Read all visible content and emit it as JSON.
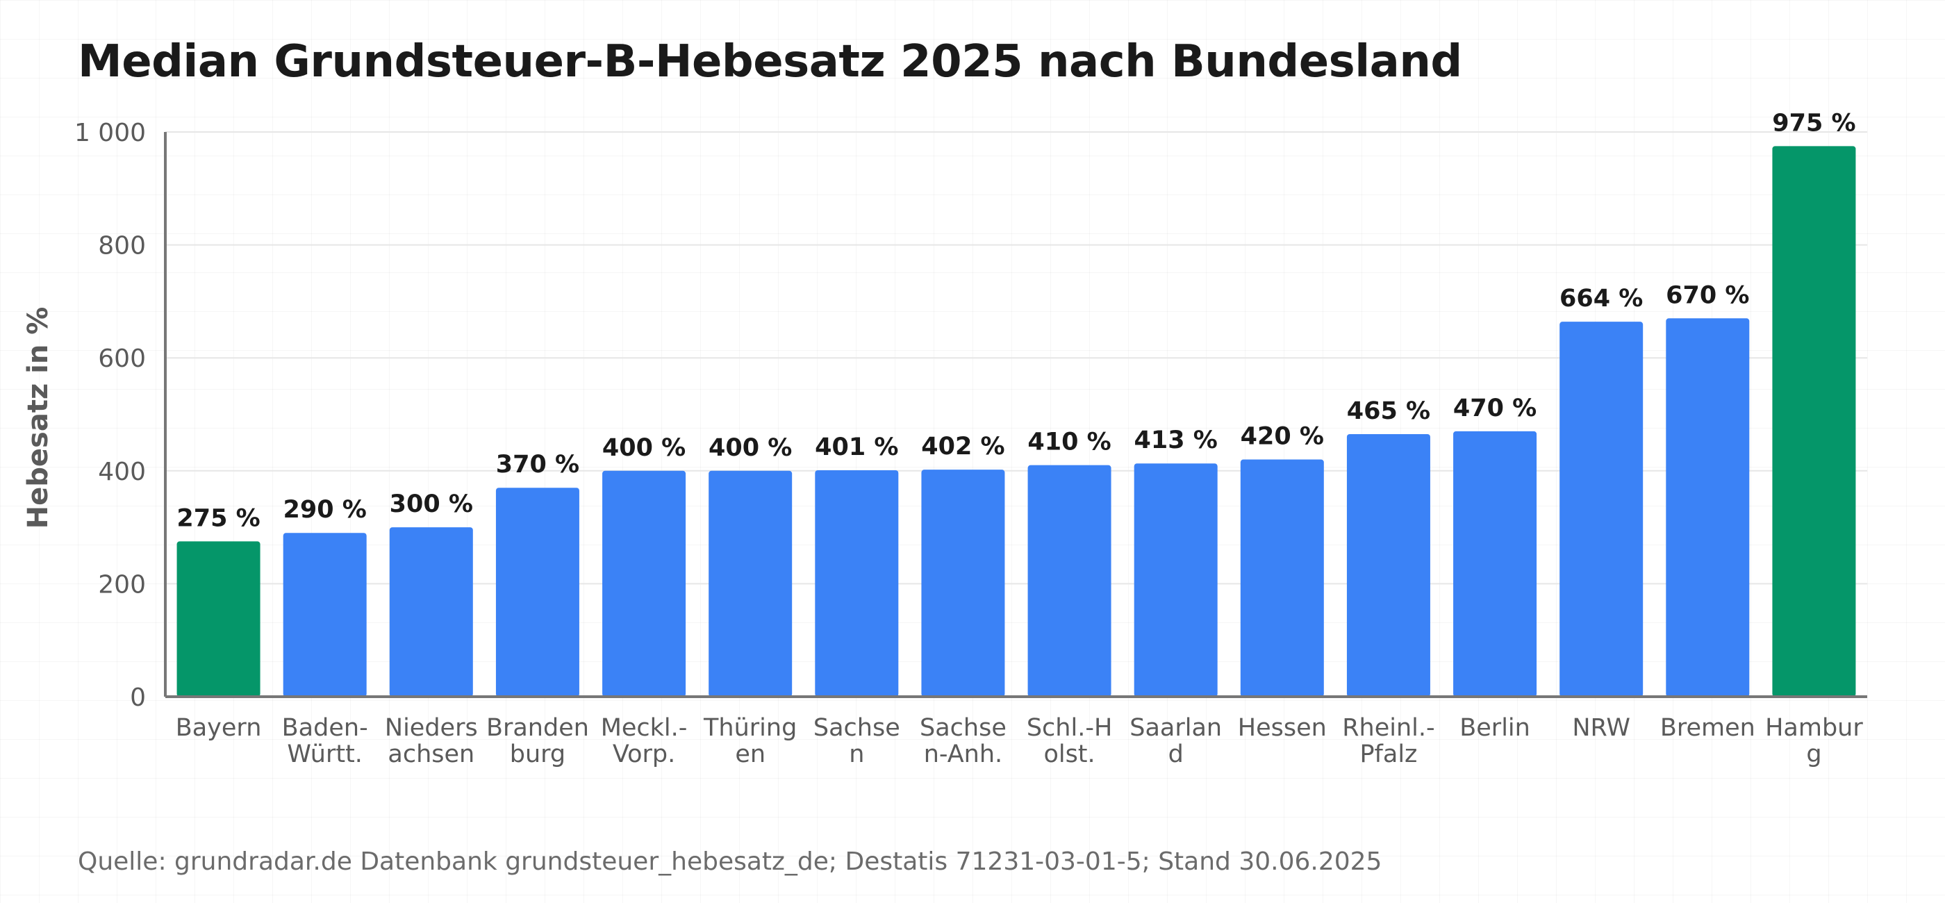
{
  "colors": {
    "highlight": "#059669",
    "default": "#3b82f6",
    "gridline": "#e6e6e6",
    "axis": "#777777"
  },
  "source_text": "Quelle: grundradar.de Datenbank grundsteuer_hebesatz_de; Destatis 71231-03-01-5; Stand 30.06.2025",
  "chart_data": {
    "type": "bar",
    "title": "Median Grundsteuer-B-Hebesatz 2025 nach Bundesland",
    "xlabel": "",
    "ylabel": "Hebesatz in %",
    "ylim": [
      0,
      1000
    ],
    "yticks": [
      0,
      200,
      400,
      600,
      800,
      1000
    ],
    "ytick_labels": [
      "0",
      "200",
      "400",
      "600",
      "800",
      "1 000"
    ],
    "grid": true,
    "categories": [
      [
        "Bayern"
      ],
      [
        "Baden-",
        "Württ."
      ],
      [
        "Nieders",
        "achsen"
      ],
      [
        "Branden",
        "burg"
      ],
      [
        "Meckl.-",
        "Vorp."
      ],
      [
        "Thüring",
        "en"
      ],
      [
        "Sachse",
        "n"
      ],
      [
        "Sachse",
        "n-Anh."
      ],
      [
        "Schl.-H",
        "olst."
      ],
      [
        "Saarlan",
        "d"
      ],
      [
        "Hessen"
      ],
      [
        "Rheinl.-",
        "Pfalz"
      ],
      [
        "Berlin"
      ],
      [
        "NRW"
      ],
      [
        "Bremen"
      ],
      [
        "Hambur",
        "g"
      ]
    ],
    "values": [
      275,
      290,
      300,
      370,
      400,
      400,
      401,
      402,
      410,
      413,
      420,
      465,
      470,
      664,
      670,
      975
    ],
    "value_labels": [
      "275 %",
      "290 %",
      "300 %",
      "370 %",
      "400 %",
      "400 %",
      "401 %",
      "402 %",
      "410 %",
      "413 %",
      "420 %",
      "465 %",
      "470 %",
      "664 %",
      "670 %",
      "975 %"
    ],
    "highlighted": [
      true,
      false,
      false,
      false,
      false,
      false,
      false,
      false,
      false,
      false,
      false,
      false,
      false,
      false,
      false,
      true
    ]
  }
}
